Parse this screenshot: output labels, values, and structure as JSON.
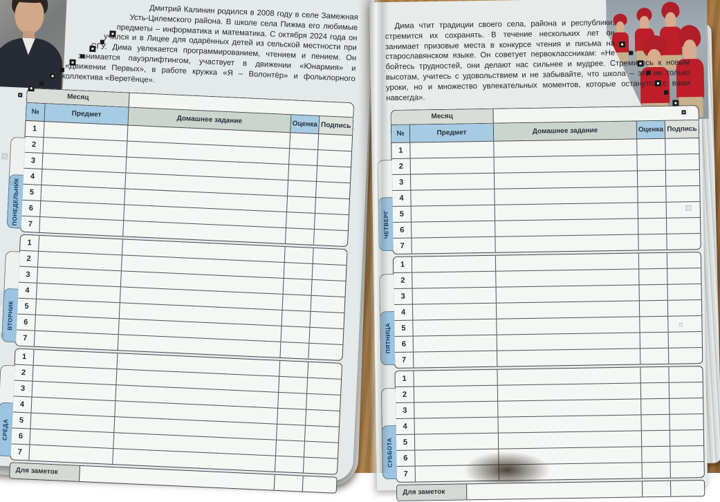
{
  "left_page": {
    "bio_text": "Дмитрий Калинин родился в 2008 году в селе Замежная Усть-Цилемского района. В школе села Пижма его любимые предметы – информатика и математика. С октября 2024 года он учился и в Лицее для одарённых детей из сельской местности при СГУ. Дима увлекается программированием, чтением и пением. Он занимается пауэрлифтингом, участвует в движении «Юнармия» и «Движении Первых», в работе кружка «Я – Волонтёр» и фольклорного коллектива «Веретёнце».",
    "days": [
      "ПОНЕДЕЛЬНИК",
      "ВТОРНИК",
      "СРЕДА"
    ]
  },
  "right_page": {
    "quote_text": "Дима чтит традиции своего села, района и республики, стремится их сохранять. В течение нескольких лет он занимает призовые места в конкурсе чтения и письма на старославянском языке. Он советует первоклассникам: «Не бойтесь трудностей, они делают нас сильнее и мудрее. Стремитесь к новым высотам, учитесь с удовольствием и не забывайте, что школа – это не только уроки, но и множество увлекательных моментов, которые останутся с вами навсегда».",
    "days": [
      "ЧЕТВЕРГ",
      "ПЯТНИЦА",
      "СУББОТА"
    ]
  },
  "table": {
    "month_label": "Месяц",
    "columns": [
      "№",
      "Предмет",
      "Домашнее задание",
      "Оценка",
      "Подпись"
    ],
    "periods": [
      "1",
      "2",
      "3",
      "4",
      "5",
      "6",
      "7"
    ],
    "notes_label": "Для заметок"
  },
  "colors": {
    "header_blue": "#a7cbe4",
    "tab_blue": "#9cc3df",
    "header_gray_green": "#ccd5cd",
    "uniform_red": "#bd1e29",
    "page_background": "#e6eae9",
    "desk_wood": "#a9763f"
  }
}
